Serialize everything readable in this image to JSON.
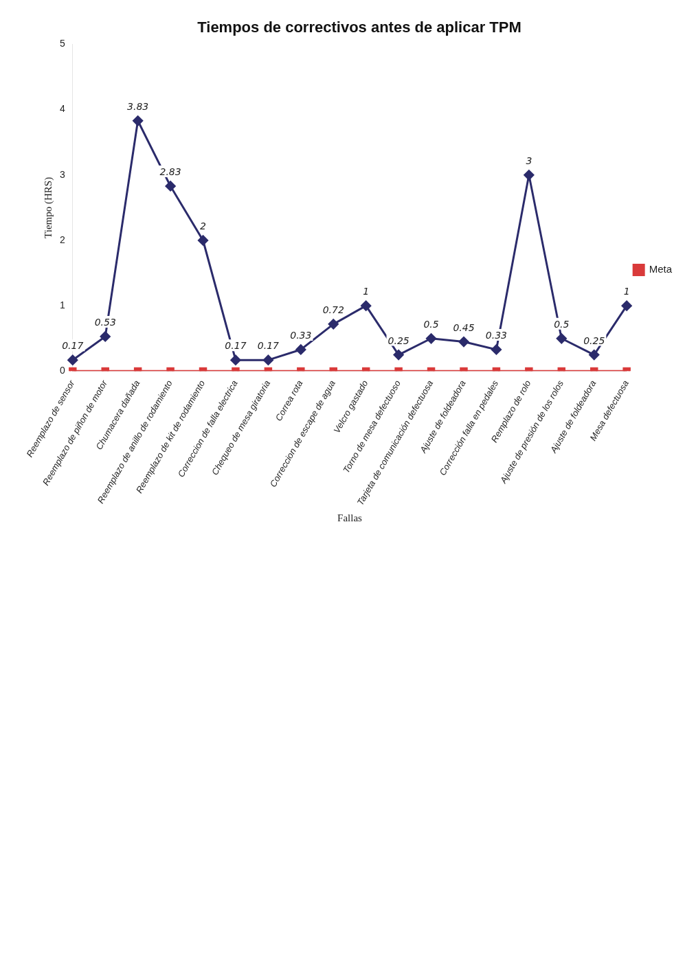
{
  "chart_data": {
    "type": "line",
    "title": "Tiempos de correctivos antes de aplicar TPM",
    "xlabel": "Fallas",
    "ylabel": "Tiempo (HRS)",
    "categories": [
      "Reemplazo de sensor",
      "Reemplazo de piñon de motor",
      "Chumacera dañada",
      "Reemplazo de anillo de rodamiento",
      "Reemplazo de kit de rodamiento",
      "Correccion de falla electrica",
      "Chequeo de mesa giratoria",
      "Correa rota",
      "Correccion de escape de agua",
      "Velcro gastado",
      "Torno de mesa defectuoso",
      "Tarjeta de comunicación defectuosa",
      "Ajuste de foldeadora",
      "Corrección falla en pedales",
      "Remplazo de rolo",
      "Ajuste de presión de los rolos",
      "Ajuste de foldeadora",
      "Mesa defectuosa"
    ],
    "series": [
      {
        "color": "#2b2b6b",
        "marker": "diamond",
        "values": [
          0.17,
          0.53,
          3.83,
          2.83,
          2,
          0.17,
          0.17,
          0.33,
          0.72,
          1,
          0.25,
          0.5,
          0.45,
          0.33,
          3,
          0.5,
          0.25,
          1
        ],
        "value_labels": [
          "0.17",
          "0.53",
          "3.83",
          "2.83",
          "2",
          "0.17",
          "0.17",
          "0.33",
          "0.72",
          "1",
          "0.25",
          "0.5",
          "0.45",
          "0.33",
          "3",
          "0.5",
          "0.25",
          "1"
        ]
      },
      {
        "name": "Meta",
        "color": "#d93a3a",
        "marker": "square",
        "values": [
          0,
          0,
          0,
          0,
          0,
          0,
          0,
          0,
          0,
          0,
          0,
          0,
          0,
          0,
          0,
          0,
          0,
          0
        ]
      }
    ],
    "ylim": [
      0,
      5
    ],
    "yticks": [
      0,
      1,
      2,
      3,
      4,
      5
    ],
    "grid": false,
    "legend": "right"
  }
}
